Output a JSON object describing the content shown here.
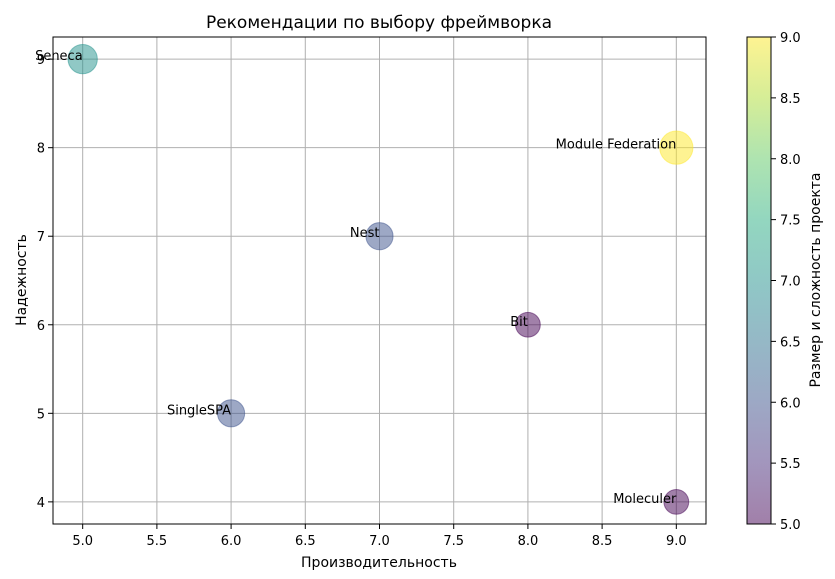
{
  "chart_data": {
    "type": "scatter",
    "title": "Рекомендации по выбору фреймворка",
    "xlabel": "Производительность",
    "ylabel": "Надежность",
    "xlim": [
      4.8,
      9.2
    ],
    "ylim": [
      3.75,
      9.25
    ],
    "xticks": [
      "5.0",
      "5.5",
      "6.0",
      "6.5",
      "7.0",
      "7.5",
      "8.0",
      "8.5",
      "9.0"
    ],
    "yticks": [
      "4",
      "5",
      "6",
      "7",
      "8",
      "9"
    ],
    "grid": true,
    "colorbar": {
      "label": "Размер и сложность проекта",
      "range": [
        5,
        9
      ],
      "ticks": [
        "5.0",
        "5.5",
        "6.0",
        "6.5",
        "7.0",
        "7.5",
        "8.0",
        "8.5",
        "9.0"
      ],
      "colormap": "viridis"
    },
    "points": [
      {
        "label": "Module Federation",
        "x": 9,
        "y": 8,
        "size": 9
      },
      {
        "label": "SingleSPA",
        "x": 6,
        "y": 5,
        "size": 6
      },
      {
        "label": "Bit",
        "x": 8,
        "y": 6,
        "size": 5
      },
      {
        "label": "Nest",
        "x": 7,
        "y": 7,
        "size": 6
      },
      {
        "label": "Seneca",
        "x": 5,
        "y": 9,
        "size": 7
      },
      {
        "label": "Moleculer",
        "x": 9,
        "y": 4,
        "size": 5
      }
    ]
  }
}
